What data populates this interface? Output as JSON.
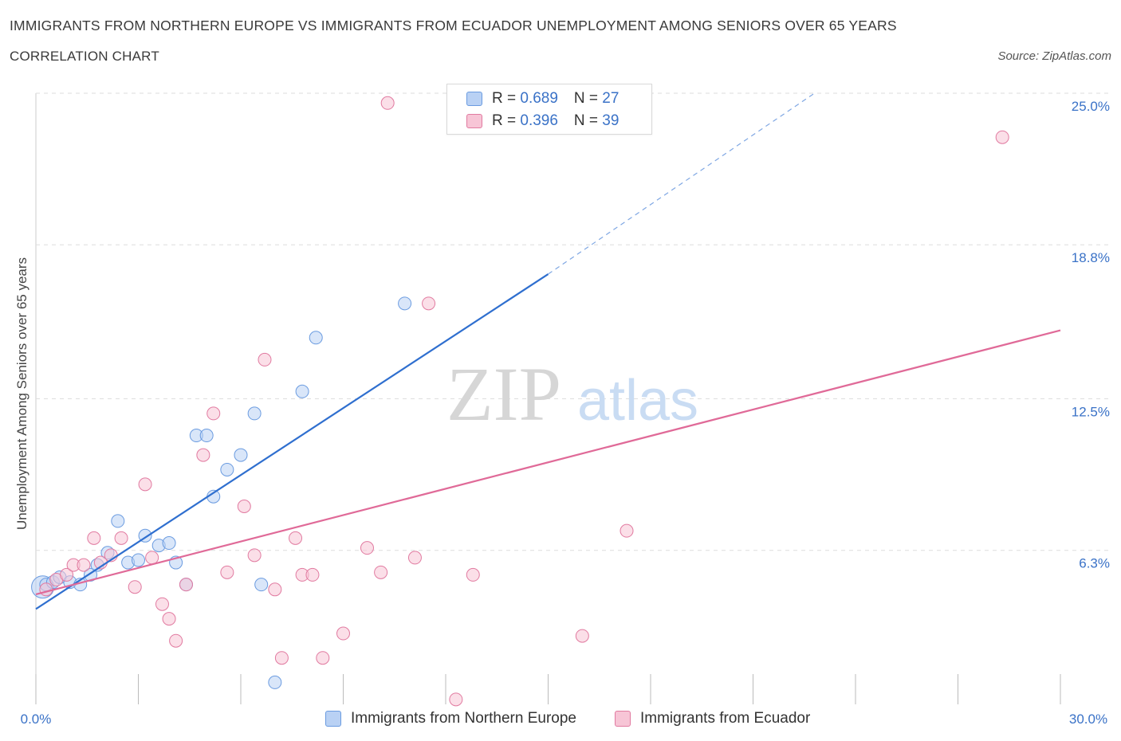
{
  "chart_data": {
    "type": "scatter",
    "title": "IMMIGRANTS FROM NORTHERN EUROPE VS IMMIGRANTS FROM ECUADOR UNEMPLOYMENT AMONG SENIORS OVER 65 YEARS",
    "subtitle": "CORRELATION CHART",
    "source": "Source: ZipAtlas.com",
    "ylabel": "Unemployment Among Seniors over 65 years",
    "xlim": [
      0,
      30
    ],
    "ylim": [
      0,
      25
    ],
    "x_tick_labels": [
      "0.0%",
      "30.0%"
    ],
    "y_ticks": [
      {
        "value": 25.0,
        "label": "25.0%"
      },
      {
        "value": 18.8,
        "label": "18.8%"
      },
      {
        "value": 12.5,
        "label": "12.5%"
      },
      {
        "value": 6.3,
        "label": "6.3%"
      }
    ],
    "watermark": "ZIPatlas",
    "series": [
      {
        "name": "Immigrants from Northern Europe",
        "color": "#6a9be0",
        "fill": "#b9d1f4",
        "R": "0.689",
        "N": "27",
        "trend": {
          "x0": 0.0,
          "y0": 3.9,
          "x1": 15.0,
          "y1": 17.6,
          "dash_to_x": 22.8,
          "dash_to_y": 25.0
        },
        "points": [
          [
            0.3,
            4.9
          ],
          [
            0.5,
            5.0
          ],
          [
            0.7,
            5.2
          ],
          [
            1.0,
            5.0
          ],
          [
            1.3,
            4.9
          ],
          [
            1.6,
            5.3
          ],
          [
            1.8,
            5.7
          ],
          [
            2.1,
            6.2
          ],
          [
            2.4,
            7.5
          ],
          [
            2.7,
            5.8
          ],
          [
            3.0,
            5.9
          ],
          [
            3.2,
            6.9
          ],
          [
            3.6,
            6.5
          ],
          [
            3.9,
            6.6
          ],
          [
            4.1,
            5.8
          ],
          [
            4.4,
            4.9
          ],
          [
            4.7,
            11.0
          ],
          [
            5.0,
            11.0
          ],
          [
            5.2,
            8.5
          ],
          [
            5.6,
            9.6
          ],
          [
            6.0,
            10.2
          ],
          [
            6.4,
            11.9
          ],
          [
            6.6,
            4.9
          ],
          [
            7.0,
            0.9
          ],
          [
            7.8,
            12.8
          ],
          [
            8.2,
            15.0
          ],
          [
            10.8,
            16.4
          ]
        ],
        "big_point": [
          0.2,
          4.8
        ]
      },
      {
        "name": "Immigrants from Ecuador",
        "color": "#e17aa0",
        "fill": "#f7c5d6",
        "R": "0.396",
        "N": "39",
        "trend": {
          "x0": 0.0,
          "y0": 4.5,
          "x1": 30.0,
          "y1": 15.3
        },
        "points": [
          [
            0.3,
            4.7
          ],
          [
            0.6,
            5.1
          ],
          [
            0.9,
            5.3
          ],
          [
            1.1,
            5.7
          ],
          [
            1.4,
            5.7
          ],
          [
            1.7,
            6.8
          ],
          [
            1.9,
            5.8
          ],
          [
            2.2,
            6.1
          ],
          [
            2.5,
            6.8
          ],
          [
            2.9,
            4.8
          ],
          [
            3.2,
            9.0
          ],
          [
            3.4,
            6.0
          ],
          [
            3.7,
            4.1
          ],
          [
            3.9,
            3.5
          ],
          [
            4.1,
            2.6
          ],
          [
            4.4,
            4.9
          ],
          [
            4.9,
            10.2
          ],
          [
            5.2,
            11.9
          ],
          [
            5.6,
            5.4
          ],
          [
            6.1,
            8.1
          ],
          [
            6.4,
            6.1
          ],
          [
            6.7,
            14.1
          ],
          [
            7.0,
            4.7
          ],
          [
            7.2,
            1.9
          ],
          [
            7.6,
            6.8
          ],
          [
            7.8,
            5.3
          ],
          [
            8.1,
            5.3
          ],
          [
            8.4,
            1.9
          ],
          [
            9.0,
            2.9
          ],
          [
            9.7,
            6.4
          ],
          [
            10.1,
            5.4
          ],
          [
            10.3,
            24.6
          ],
          [
            11.1,
            6.0
          ],
          [
            11.5,
            16.4
          ],
          [
            12.3,
            0.2
          ],
          [
            12.8,
            5.3
          ],
          [
            16.0,
            2.8
          ],
          [
            17.3,
            7.1
          ],
          [
            28.3,
            23.2
          ]
        ]
      }
    ]
  }
}
